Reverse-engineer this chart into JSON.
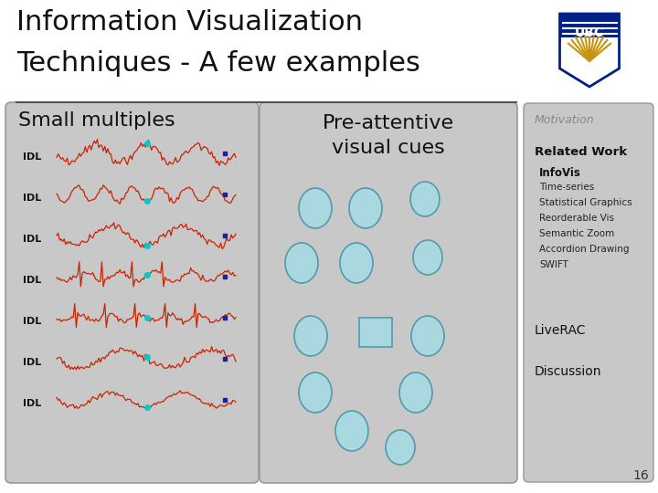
{
  "title_line1": "Information Visualization",
  "title_line2": "Techniques - A few examples",
  "title_fontsize": 22,
  "background_color": "#ffffff",
  "panel_color": "#c8c8c8",
  "left_panel_label": "Small multiples",
  "panel_label_fontsize": 16,
  "sidebar_text": {
    "motivation": "Motivation",
    "related_work": "Related Work",
    "infovis": "InfoVis",
    "items": [
      "Time-series",
      "Statistical Graphics",
      "Reorderable Vis",
      "Semantic Zoom",
      "Accordion Drawing",
      "SWIFT"
    ],
    "liverac": "LiveRAC",
    "discussion": "Discussion"
  },
  "page_number": "16",
  "ellipse_color": "#aad8e0",
  "line_color_red": "#cc2200",
  "dot_color_cyan": "#00cccc",
  "dot_color_navy": "#222288"
}
